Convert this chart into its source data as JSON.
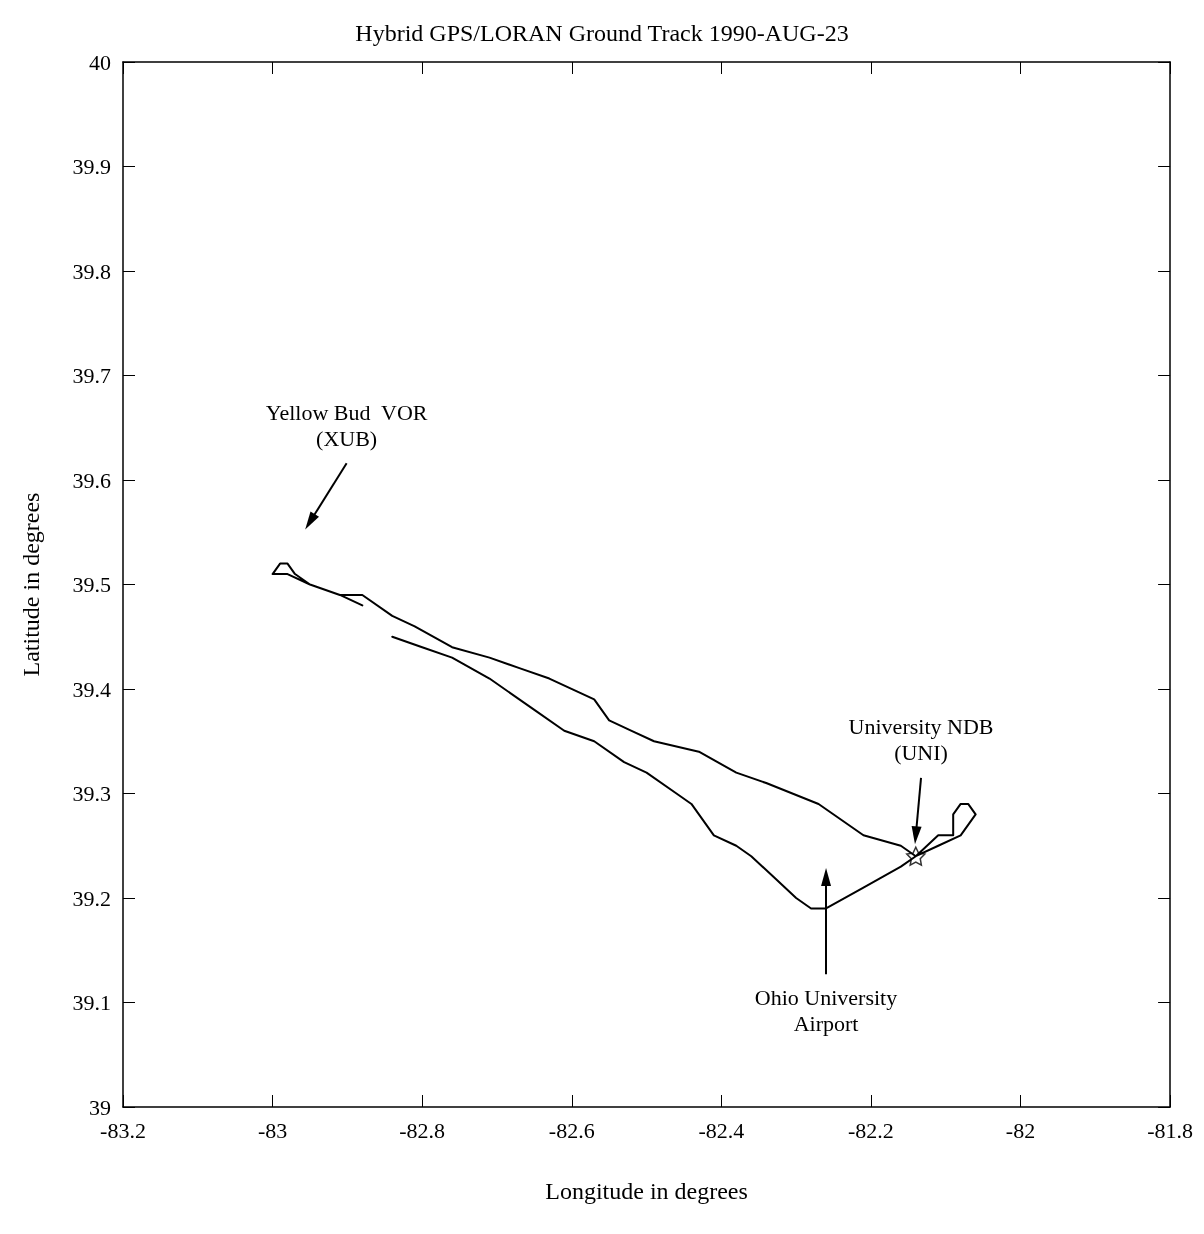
{
  "chart_data": {
    "type": "line",
    "title": "Hybrid GPS/LORAN Ground Track 1990-AUG-23",
    "xlabel": "Longitude in degrees",
    "ylabel": "Latitude in degrees",
    "xlim": [
      -83.2,
      -81.8
    ],
    "xticks": [
      -83.2,
      -83,
      -82.8,
      -82.6,
      -82.4,
      -82.2,
      -82,
      -81.8
    ],
    "ylim": [
      39,
      40
    ],
    "yticks": [
      39,
      39.1,
      39.2,
      39.3,
      39.4,
      39.5,
      39.6,
      39.7,
      39.8,
      39.9,
      40
    ],
    "grid": false,
    "marker": "none",
    "line_style": "solid",
    "series": [
      {
        "color": "#000000",
        "x": [
          -82.84,
          -82.8,
          -82.76,
          -82.71,
          -82.65,
          -82.61,
          -82.57,
          -82.53,
          -82.5,
          -82.46,
          -82.44,
          -82.41,
          -82.38,
          -82.36,
          -82.33,
          -82.3,
          -82.28,
          -82.26,
          -82.21,
          -82.16,
          -82.14,
          -82.11,
          -82.09,
          -82.09,
          -82.08,
          -82.07,
          -82.06,
          -82.08,
          -82.11,
          -82.14,
          -82.16,
          -82.21,
          -82.27,
          -82.34,
          -82.38,
          -82.43,
          -82.49,
          -82.52,
          -82.55,
          -82.57,
          -82.63,
          -82.67,
          -82.71,
          -82.76,
          -82.81,
          -82.84,
          -82.88,
          -82.91,
          -82.95,
          -82.97,
          -82.98,
          -82.99,
          -83.0,
          -83.0,
          -82.98,
          -82.95,
          -82.91,
          -82.88
        ],
        "values": [
          39.45,
          39.44,
          39.43,
          39.41,
          39.38,
          39.36,
          39.35,
          39.33,
          39.32,
          39.3,
          39.29,
          39.26,
          39.25,
          39.24,
          39.22,
          39.2,
          39.19,
          39.19,
          39.21,
          39.23,
          39.24,
          39.26,
          39.26,
          39.28,
          39.29,
          39.29,
          39.28,
          39.26,
          39.25,
          39.24,
          39.25,
          39.26,
          39.29,
          39.31,
          39.32,
          39.34,
          39.35,
          39.36,
          39.37,
          39.39,
          39.41,
          39.42,
          39.43,
          39.44,
          39.46,
          39.47,
          39.49,
          39.49,
          39.5,
          39.51,
          39.52,
          39.52,
          39.51,
          39.51,
          39.51,
          39.5,
          39.49,
          39.48
        ]
      },
      {
        "type": "scatter",
        "color": "#000000",
        "marker": "star",
        "x": [
          -82.14
        ],
        "values": [
          39.24
        ]
      }
    ],
    "annotations": [
      {
        "text": "Yellow Bud  VOR\n(XUB)",
        "x": -82.95,
        "y": 39.56
      },
      {
        "text": "University NDB\n(UNI)",
        "x": -82.14,
        "y": 39.26
      },
      {
        "text": "Ohio University\nAirport",
        "x": -82.26,
        "y": 39.22
      }
    ]
  }
}
